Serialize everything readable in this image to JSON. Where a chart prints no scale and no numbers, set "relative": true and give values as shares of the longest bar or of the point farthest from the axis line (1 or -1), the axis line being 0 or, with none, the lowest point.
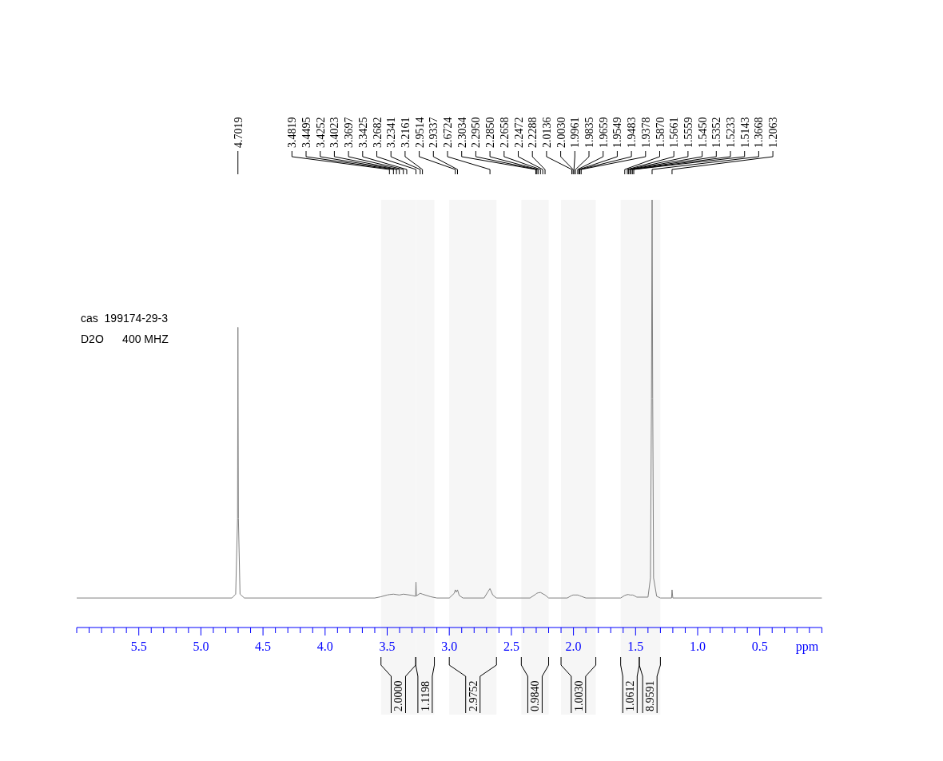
{
  "chart_data": {
    "type": "line",
    "relative": true,
    "xlabel": "ppm",
    "xlim": [
      6.0,
      0.0
    ],
    "xticks": [
      5.5,
      {
        "value": 5.0,
        "label": "5.0"
      },
      4.5,
      {
        "value": 4.0,
        "label": "4.0"
      },
      3.5,
      {
        "value": 3.0,
        "label": "3.0"
      },
      2.5,
      {
        "value": 2.0,
        "label": "2.0"
      },
      1.5,
      {
        "value": 1.0,
        "label": "1.0"
      },
      0.5
    ],
    "series": [
      {
        "color": "#808080",
        "x": [
          6.0,
          4.75,
          4.72,
          4.705,
          4.7019,
          4.698,
          4.685,
          4.65,
          3.6,
          3.55,
          3.5,
          3.4819,
          3.4495,
          3.4252,
          3.4023,
          3.3697,
          3.3425,
          3.3,
          3.271,
          3.2682,
          3.265,
          3.2341,
          3.2161,
          3.15,
          3.1,
          3.0,
          2.96,
          2.9514,
          2.942,
          2.9337,
          2.92,
          2.89,
          2.72,
          2.69,
          2.6724,
          2.65,
          2.62,
          2.35,
          2.3034,
          2.295,
          2.285,
          2.2658,
          2.2472,
          2.2288,
          2.2,
          2.05,
          2.0136,
          2.003,
          1.9961,
          1.9835,
          1.9659,
          1.9549,
          1.9483,
          1.9378,
          1.9,
          1.62,
          1.587,
          1.5661,
          1.5559,
          1.545,
          1.5352,
          1.5233,
          1.5143,
          1.49,
          1.4,
          1.38,
          1.372,
          1.3668,
          1.362,
          1.355,
          1.33,
          1.3,
          1.21,
          1.2063,
          1.2,
          0.0
        ],
        "values": [
          0.069,
          0.069,
          0.078,
          0.255,
          0.702,
          0.255,
          0.078,
          0.069,
          0.069,
          0.072,
          0.076,
          0.077,
          0.078,
          0.077,
          0.076,
          0.078,
          0.077,
          0.075,
          0.073,
          0.106,
          0.074,
          0.08,
          0.078,
          0.072,
          0.069,
          0.069,
          0.08,
          0.088,
          0.083,
          0.088,
          0.075,
          0.069,
          0.069,
          0.083,
          0.091,
          0.076,
          0.069,
          0.069,
          0.078,
          0.08,
          0.081,
          0.082,
          0.079,
          0.076,
          0.069,
          0.069,
          0.075,
          0.076,
          0.076,
          0.076,
          0.076,
          0.075,
          0.074,
          0.073,
          0.069,
          0.069,
          0.075,
          0.077,
          0.077,
          0.076,
          0.076,
          0.076,
          0.075,
          0.071,
          0.071,
          0.116,
          0.535,
          1,
          0.535,
          0.116,
          0.073,
          0.069,
          0.069,
          0.088,
          0.069,
          0.069
        ]
      }
    ],
    "annotations": [
      "cas  199174-29-3",
      "D2O      400 MHZ",
      {
        "text": "4.7019",
        "x": 4.7019
      },
      {
        "text": "3.4819",
        "x": 3.4819
      },
      {
        "text": "3.4495",
        "x": 3.4495
      },
      {
        "text": "3.4252",
        "x": 3.4252
      },
      {
        "text": "3.4023",
        "x": 3.4023
      },
      {
        "text": "3.3697",
        "x": 3.3697
      },
      {
        "text": "3.3425",
        "x": 3.3425
      },
      {
        "text": "3.2682",
        "x": 3.2682
      },
      {
        "text": "3.2341",
        "x": 3.2341
      },
      {
        "text": "3.2161",
        "x": 3.2161
      },
      {
        "text": "2.9514",
        "x": 2.9514
      },
      {
        "text": "2.9337",
        "x": 2.9337
      },
      {
        "text": "2.6724",
        "x": 2.6724
      },
      {
        "text": "2.3034",
        "x": 2.3034
      },
      {
        "text": "2.2950",
        "x": 2.295
      },
      {
        "text": "2.2850",
        "x": 2.285
      },
      {
        "text": "2.2658",
        "x": 2.2658
      },
      {
        "text": "2.2472",
        "x": 2.2472
      },
      {
        "text": "2.2288",
        "x": 2.2288
      },
      {
        "text": "2.0136",
        "x": 2.0136
      },
      {
        "text": "2.0030",
        "x": 2.003
      },
      {
        "text": "1.9961",
        "x": 1.9961
      },
      {
        "text": "1.9835",
        "x": 1.9835
      },
      {
        "text": "1.9659",
        "x": 1.9659
      },
      {
        "text": "1.9549",
        "x": 1.9549
      },
      {
        "text": "1.9483",
        "x": 1.9483
      },
      {
        "text": "1.9378",
        "x": 1.9378
      },
      {
        "text": "1.5870",
        "x": 1.587
      },
      {
        "text": "1.5661",
        "x": 1.5661
      },
      {
        "text": "1.5559",
        "x": 1.5559
      },
      {
        "text": "1.5450",
        "x": 1.545
      },
      {
        "text": "1.5352",
        "x": 1.5352
      },
      {
        "text": "1.5233",
        "x": 1.5233
      },
      {
        "text": "1.5143",
        "x": 1.5143
      },
      {
        "text": "1.3668",
        "x": 1.3668
      },
      {
        "text": "1.2063",
        "x": 1.2063
      }
    ],
    "bands": [
      {
        "axis": "x",
        "from": 3.55,
        "to": 3.27,
        "label": "2.0000"
      },
      {
        "axis": "x",
        "from": 3.27,
        "to": 3.12,
        "label": "1.1198"
      },
      {
        "axis": "x",
        "from": 3.0,
        "to": 2.62,
        "label": "2.9752"
      },
      {
        "axis": "x",
        "from": 2.42,
        "to": 2.2,
        "label": "0.9840"
      },
      {
        "axis": "x",
        "from": 2.1,
        "to": 1.82,
        "label": "1.0030"
      },
      {
        "axis": "x",
        "from": 1.62,
        "to": 1.47,
        "label": "1.0612"
      },
      {
        "axis": "x",
        "from": 1.47,
        "to": 1.3,
        "label": "8.9591"
      }
    ]
  }
}
